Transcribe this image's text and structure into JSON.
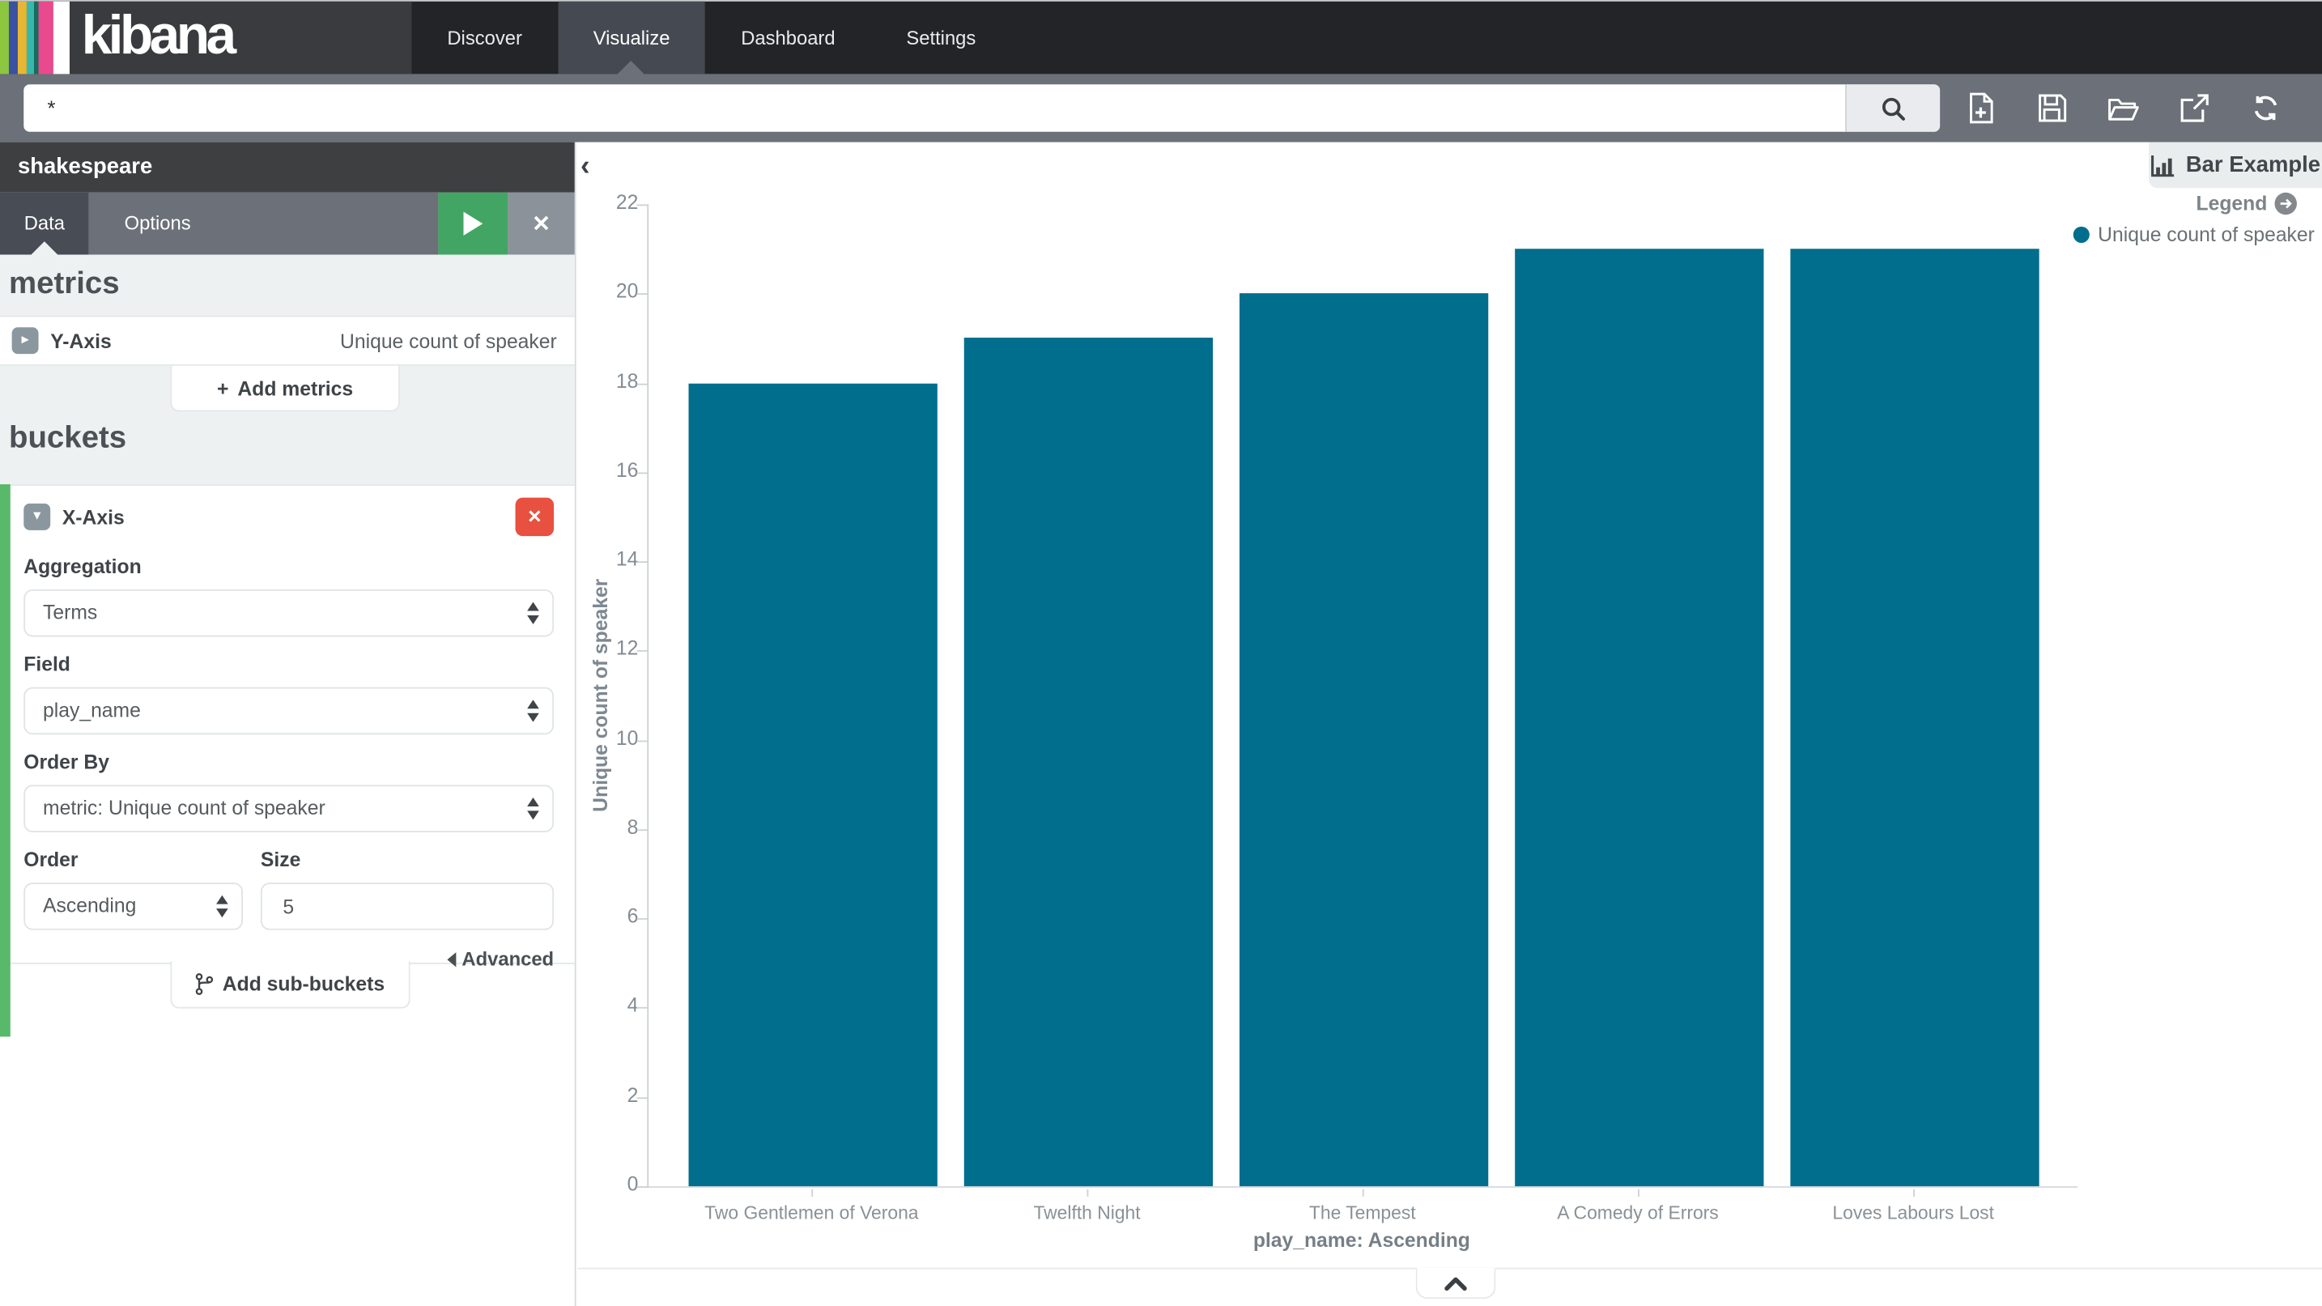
{
  "nav": {
    "logo": "kibana",
    "items": [
      {
        "label": "Discover"
      },
      {
        "label": "Visualize"
      },
      {
        "label": "Dashboard"
      },
      {
        "label": "Settings"
      }
    ],
    "active": "Visualize"
  },
  "search": {
    "query": "*"
  },
  "sidebar": {
    "index_pattern": "shakespeare",
    "tabs": [
      {
        "label": "Data"
      },
      {
        "label": "Options"
      }
    ],
    "metrics": {
      "heading": "metrics",
      "y_axis_label": "Y-Axis",
      "y_axis_value": "Unique count of speaker",
      "add_label": "Add metrics"
    },
    "buckets": {
      "heading": "buckets",
      "x_axis_label": "X-Axis",
      "aggregation": {
        "label": "Aggregation",
        "value": "Terms"
      },
      "field": {
        "label": "Field",
        "value": "play_name"
      },
      "order_by": {
        "label": "Order By",
        "value": "metric: Unique count of speaker"
      },
      "order": {
        "label": "Order",
        "value": "Ascending"
      },
      "size": {
        "label": "Size",
        "value": "5"
      },
      "advanced_label": "Advanced",
      "add_label": "Add sub-buckets"
    }
  },
  "chart": {
    "type_label": "Bar Example",
    "legend": {
      "label": "Legend",
      "items": [
        {
          "label": "Unique count of speaker",
          "color": "#006e8c"
        }
      ]
    }
  },
  "chart_data": {
    "type": "bar",
    "title": "Bar Example",
    "categories": [
      "Two Gentlemen of Verona",
      "Twelfth Night",
      "The Tempest",
      "A Comedy of Errors",
      "Loves Labours Lost"
    ],
    "values": [
      18,
      19,
      20,
      21,
      21
    ],
    "series_name": "Unique count of speaker",
    "xlabel": "play_name: Ascending",
    "ylabel": "Unique count of speaker",
    "ylim": [
      0,
      22
    ],
    "ytick_step": 2,
    "bar_color": "#006e8c",
    "legend_position": "top-right",
    "grid": false
  },
  "icons": {
    "plus": "+",
    "close": "✕",
    "collapse_left": "‹",
    "chevron_right": "▸",
    "chevron_down": "▾"
  }
}
